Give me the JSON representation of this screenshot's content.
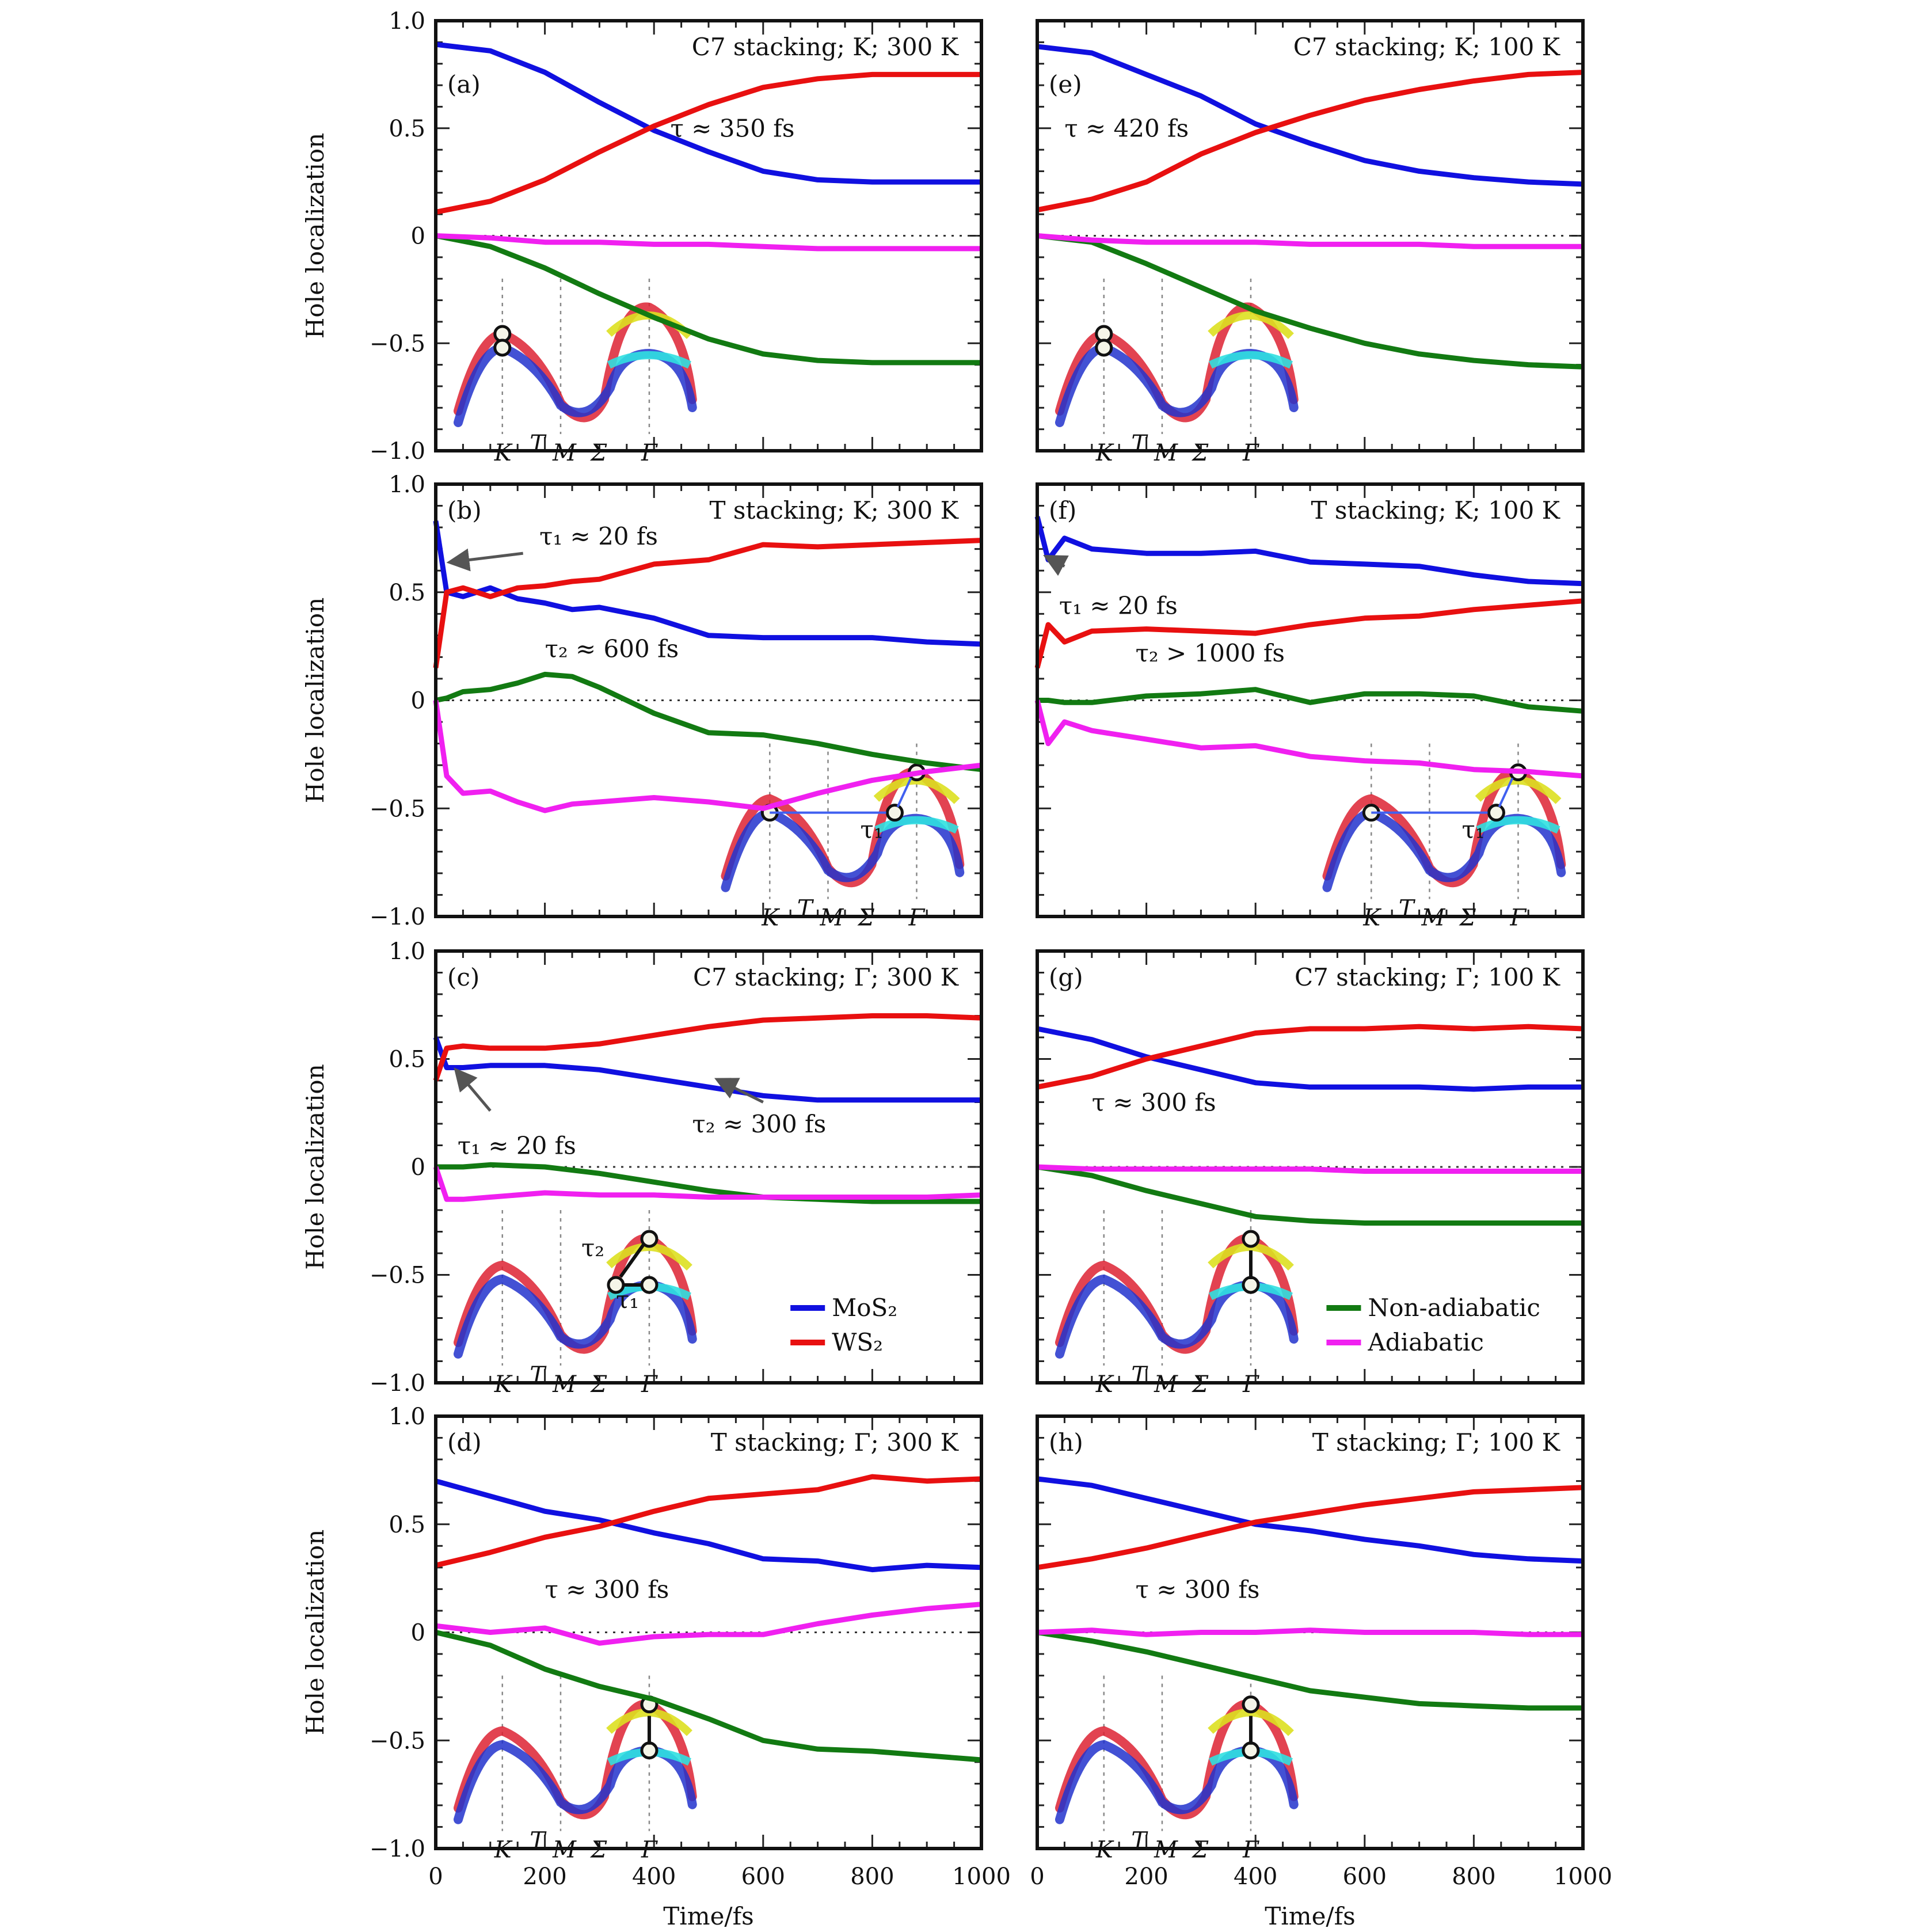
{
  "chart_data": {
    "type": "line",
    "layout": "grid-4x2",
    "shared": {
      "xlabel": "Time/fs",
      "ylabel": "Hole localization",
      "xlim": [
        0,
        1000
      ],
      "ylim": [
        -1.0,
        1.0
      ],
      "xticks": [
        0,
        200,
        400,
        600,
        800,
        1000
      ],
      "xtick_labels": [
        "0",
        "200",
        "400",
        "600",
        "800",
        "1000"
      ],
      "yticks": [
        1.0,
        0.5,
        0,
        -0.5,
        -1.0
      ],
      "ytick_labels": [
        "1.0",
        "0.5",
        "0",
        "−0.5",
        "−1.0"
      ],
      "zero_line": "dotted",
      "series_colors": {
        "MoS2": "#1010e0",
        "WS2": "#e81010",
        "Non-adiabatic": "#127a12",
        "Adiabatic": "#f020f0"
      },
      "inset_kpoint_labels": [
        "K",
        "T",
        "M",
        "Σ",
        "Γ"
      ]
    },
    "legends": [
      {
        "panel": "c",
        "placement": "bottom-right",
        "entries": [
          {
            "label": "MoS₂",
            "series": "MoS2"
          },
          {
            "label": "WS₂",
            "series": "WS2"
          }
        ]
      },
      {
        "panel": "g",
        "placement": "bottom-right",
        "entries": [
          {
            "label": "Non-adiabatic",
            "series": "Non-adiabatic"
          },
          {
            "label": "Adiabatic",
            "series": "Adiabatic"
          }
        ]
      }
    ],
    "panels": [
      {
        "id": "a",
        "letter": "(a)",
        "title": "C7 stacking; K; 300 K",
        "inset": "K-static",
        "annotations": [
          {
            "text": "τ ≈ 350 fs"
          }
        ],
        "x": [
          0,
          100,
          200,
          300,
          400,
          500,
          600,
          700,
          800,
          900,
          1000
        ],
        "series": [
          {
            "name": "MoS2",
            "values": [
              0.89,
              0.86,
              0.76,
              0.62,
              0.49,
              0.39,
              0.3,
              0.26,
              0.25,
              0.25,
              0.25
            ]
          },
          {
            "name": "WS2",
            "values": [
              0.11,
              0.16,
              0.26,
              0.39,
              0.51,
              0.61,
              0.69,
              0.73,
              0.75,
              0.75,
              0.75
            ]
          },
          {
            "name": "Non-adiabatic",
            "values": [
              0.0,
              -0.05,
              -0.15,
              -0.27,
              -0.38,
              -0.48,
              -0.55,
              -0.58,
              -0.59,
              -0.59,
              -0.59
            ]
          },
          {
            "name": "Adiabatic",
            "values": [
              0.0,
              -0.01,
              -0.03,
              -0.03,
              -0.04,
              -0.04,
              -0.05,
              -0.06,
              -0.06,
              -0.06,
              -0.06
            ]
          }
        ]
      },
      {
        "id": "b",
        "letter": "(b)",
        "title": "T stacking; K; 300 K",
        "inset": "K-transfer",
        "annotations": [
          {
            "text": "τ₁ ≈ 20 fs"
          },
          {
            "text": "τ₂ ≈ 600 fs"
          }
        ],
        "x": [
          0,
          20,
          50,
          100,
          150,
          200,
          250,
          300,
          400,
          500,
          600,
          700,
          800,
          900,
          1000
        ],
        "series": [
          {
            "name": "MoS2",
            "values": [
              0.83,
              0.5,
              0.48,
              0.52,
              0.47,
              0.45,
              0.42,
              0.43,
              0.38,
              0.3,
              0.29,
              0.29,
              0.29,
              0.27,
              0.26
            ]
          },
          {
            "name": "WS2",
            "values": [
              0.15,
              0.5,
              0.52,
              0.48,
              0.52,
              0.53,
              0.55,
              0.56,
              0.63,
              0.65,
              0.72,
              0.71,
              0.72,
              0.73,
              0.74
            ]
          },
          {
            "name": "Non-adiabatic",
            "values": [
              0.0,
              0.01,
              0.04,
              0.05,
              0.08,
              0.12,
              0.11,
              0.06,
              -0.06,
              -0.15,
              -0.16,
              -0.2,
              -0.25,
              -0.29,
              -0.32
            ]
          },
          {
            "name": "Adiabatic",
            "values": [
              0.0,
              -0.35,
              -0.43,
              -0.42,
              -0.47,
              -0.51,
              -0.48,
              -0.47,
              -0.45,
              -0.47,
              -0.5,
              -0.43,
              -0.37,
              -0.33,
              -0.3
            ]
          }
        ]
      },
      {
        "id": "c",
        "letter": "(c)",
        "title": "C7 stacking; Γ; 300 K",
        "inset": "Gamma-two-step",
        "annotations": [
          {
            "text": "τ₁ ≈ 20 fs"
          },
          {
            "text": "τ₂ ≈ 300 fs"
          }
        ],
        "x": [
          0,
          20,
          50,
          100,
          200,
          300,
          400,
          500,
          600,
          700,
          800,
          900,
          1000
        ],
        "series": [
          {
            "name": "MoS2",
            "values": [
              0.6,
              0.46,
              0.46,
              0.47,
              0.47,
              0.45,
              0.41,
              0.37,
              0.33,
              0.31,
              0.31,
              0.31,
              0.31
            ]
          },
          {
            "name": "WS2",
            "values": [
              0.4,
              0.55,
              0.56,
              0.55,
              0.55,
              0.57,
              0.61,
              0.65,
              0.68,
              0.69,
              0.7,
              0.7,
              0.69
            ]
          },
          {
            "name": "Non-adiabatic",
            "values": [
              0.0,
              0.0,
              0.0,
              0.01,
              0.0,
              -0.03,
              -0.07,
              -0.11,
              -0.14,
              -0.15,
              -0.16,
              -0.16,
              -0.16
            ]
          },
          {
            "name": "Adiabatic",
            "values": [
              0.0,
              -0.15,
              -0.15,
              -0.14,
              -0.12,
              -0.13,
              -0.13,
              -0.14,
              -0.14,
              -0.14,
              -0.14,
              -0.14,
              -0.13
            ]
          }
        ]
      },
      {
        "id": "d",
        "letter": "(d)",
        "title": "T stacking; Γ; 300 K",
        "inset": "Gamma-vertical",
        "annotations": [
          {
            "text": "τ ≈ 300 fs"
          }
        ],
        "x": [
          0,
          100,
          200,
          300,
          400,
          500,
          600,
          700,
          800,
          900,
          1000
        ],
        "series": [
          {
            "name": "MoS2",
            "values": [
              0.7,
              0.63,
              0.56,
              0.52,
              0.46,
              0.41,
              0.34,
              0.33,
              0.29,
              0.31,
              0.3
            ]
          },
          {
            "name": "WS2",
            "values": [
              0.31,
              0.37,
              0.44,
              0.49,
              0.56,
              0.62,
              0.64,
              0.66,
              0.72,
              0.7,
              0.71
            ]
          },
          {
            "name": "Non-adiabatic",
            "values": [
              0.0,
              -0.06,
              -0.17,
              -0.25,
              -0.31,
              -0.4,
              -0.5,
              -0.54,
              -0.55,
              -0.57,
              -0.59
            ]
          },
          {
            "name": "Adiabatic",
            "values": [
              0.03,
              0.0,
              0.02,
              -0.05,
              -0.02,
              -0.01,
              -0.01,
              0.04,
              0.08,
              0.11,
              0.13
            ]
          }
        ]
      },
      {
        "id": "e",
        "letter": "(e)",
        "title": "C7 stacking; K; 100 K",
        "inset": "K-static",
        "annotations": [
          {
            "text": "τ ≈ 420 fs"
          }
        ],
        "x": [
          0,
          100,
          200,
          300,
          400,
          500,
          600,
          700,
          800,
          900,
          1000
        ],
        "series": [
          {
            "name": "MoS2",
            "values": [
              0.88,
              0.85,
              0.75,
              0.65,
              0.52,
              0.43,
              0.35,
              0.3,
              0.27,
              0.25,
              0.24
            ]
          },
          {
            "name": "WS2",
            "values": [
              0.12,
              0.17,
              0.25,
              0.38,
              0.48,
              0.56,
              0.63,
              0.68,
              0.72,
              0.75,
              0.76
            ]
          },
          {
            "name": "Non-adiabatic",
            "values": [
              0.0,
              -0.03,
              -0.13,
              -0.24,
              -0.35,
              -0.43,
              -0.5,
              -0.55,
              -0.58,
              -0.6,
              -0.61
            ]
          },
          {
            "name": "Adiabatic",
            "values": [
              0.0,
              -0.02,
              -0.03,
              -0.03,
              -0.03,
              -0.04,
              -0.04,
              -0.04,
              -0.05,
              -0.05,
              -0.05
            ]
          }
        ]
      },
      {
        "id": "f",
        "letter": "(f)",
        "title": "T stacking; K; 100 K",
        "inset": "K-transfer",
        "annotations": [
          {
            "text": "τ₁ ≈ 20 fs"
          },
          {
            "text": "τ₂ > 1000 fs"
          }
        ],
        "x": [
          0,
          20,
          50,
          100,
          200,
          300,
          400,
          500,
          600,
          700,
          800,
          900,
          1000
        ],
        "series": [
          {
            "name": "MoS2",
            "values": [
              0.85,
              0.65,
              0.75,
              0.7,
              0.68,
              0.68,
              0.69,
              0.64,
              0.63,
              0.62,
              0.58,
              0.55,
              0.54
            ]
          },
          {
            "name": "WS2",
            "values": [
              0.15,
              0.35,
              0.27,
              0.32,
              0.33,
              0.32,
              0.31,
              0.35,
              0.38,
              0.39,
              0.42,
              0.44,
              0.46
            ]
          },
          {
            "name": "Non-adiabatic",
            "values": [
              0.0,
              0.0,
              -0.01,
              -0.01,
              0.02,
              0.03,
              0.05,
              -0.01,
              0.03,
              0.03,
              0.02,
              -0.03,
              -0.05
            ]
          },
          {
            "name": "Adiabatic",
            "values": [
              0.0,
              -0.2,
              -0.1,
              -0.14,
              -0.18,
              -0.22,
              -0.21,
              -0.26,
              -0.28,
              -0.29,
              -0.32,
              -0.33,
              -0.35
            ]
          }
        ]
      },
      {
        "id": "g",
        "letter": "(g)",
        "title": "C7 stacking; Γ; 100 K",
        "inset": "Gamma-vertical",
        "annotations": [
          {
            "text": "τ ≈ 300 fs"
          }
        ],
        "x": [
          0,
          100,
          200,
          300,
          400,
          500,
          600,
          700,
          800,
          900,
          1000
        ],
        "series": [
          {
            "name": "MoS2",
            "values": [
              0.64,
              0.59,
              0.51,
              0.45,
              0.39,
              0.37,
              0.37,
              0.37,
              0.36,
              0.37,
              0.37
            ]
          },
          {
            "name": "WS2",
            "values": [
              0.37,
              0.42,
              0.5,
              0.56,
              0.62,
              0.64,
              0.64,
              0.65,
              0.64,
              0.65,
              0.64
            ]
          },
          {
            "name": "Non-adiabatic",
            "values": [
              0.0,
              -0.04,
              -0.11,
              -0.17,
              -0.23,
              -0.25,
              -0.26,
              -0.26,
              -0.26,
              -0.26,
              -0.26
            ]
          },
          {
            "name": "Adiabatic",
            "values": [
              0.0,
              -0.01,
              -0.01,
              -0.01,
              -0.01,
              -0.01,
              -0.02,
              -0.02,
              -0.02,
              -0.02,
              -0.02
            ]
          }
        ]
      },
      {
        "id": "h",
        "letter": "(h)",
        "title": "T stacking; Γ; 100 K",
        "inset": "Gamma-vertical",
        "annotations": [
          {
            "text": "τ ≈ 300 fs"
          }
        ],
        "x": [
          0,
          100,
          200,
          300,
          400,
          500,
          600,
          700,
          800,
          900,
          1000
        ],
        "series": [
          {
            "name": "MoS2",
            "values": [
              0.71,
              0.68,
              0.62,
              0.56,
              0.5,
              0.47,
              0.43,
              0.4,
              0.36,
              0.34,
              0.33
            ]
          },
          {
            "name": "WS2",
            "values": [
              0.3,
              0.34,
              0.39,
              0.45,
              0.51,
              0.55,
              0.59,
              0.62,
              0.65,
              0.66,
              0.67
            ]
          },
          {
            "name": "Non-adiabatic",
            "values": [
              0.0,
              -0.04,
              -0.09,
              -0.15,
              -0.21,
              -0.27,
              -0.3,
              -0.33,
              -0.34,
              -0.35,
              -0.35
            ]
          },
          {
            "name": "Adiabatic",
            "values": [
              0.0,
              0.01,
              -0.01,
              0.0,
              0.0,
              0.01,
              0.0,
              0.0,
              0.0,
              -0.01,
              -0.01
            ]
          }
        ]
      }
    ]
  }
}
